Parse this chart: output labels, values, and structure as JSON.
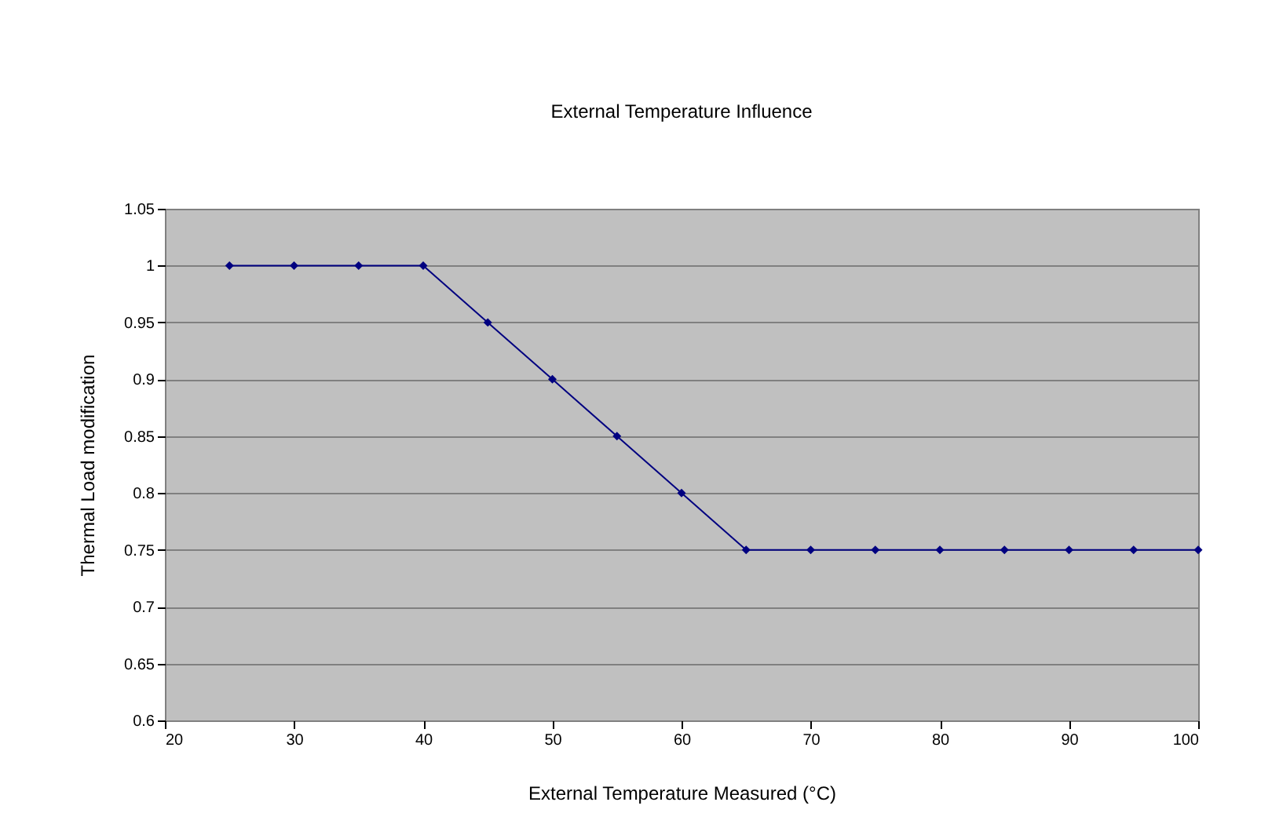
{
  "chart_data": {
    "type": "line",
    "title": "External Temperature Influence",
    "xlabel": "External Temperature Measured (°C)",
    "ylabel": "Thermal Load modification",
    "x": [
      25,
      30,
      35,
      40,
      45,
      50,
      55,
      60,
      65,
      70,
      75,
      80,
      85,
      90,
      95,
      100
    ],
    "series": [
      {
        "color": "#000080",
        "values": [
          1,
          1,
          1,
          1,
          0.95,
          0.9,
          0.85,
          0.8,
          0.75,
          0.75,
          0.75,
          0.75,
          0.75,
          0.75,
          0.75,
          0.75
        ]
      }
    ],
    "xlim": [
      20,
      100
    ],
    "xticks": [
      20,
      30,
      40,
      50,
      60,
      70,
      80,
      90,
      100
    ],
    "ylim": [
      0.6,
      1.05
    ],
    "yticks": [
      0.6,
      0.65,
      0.7,
      0.75,
      0.8,
      0.85,
      0.9,
      0.95,
      1,
      1.05
    ],
    "grid": "y",
    "legend": false,
    "marker": "diamond",
    "line_style": "solid"
  }
}
